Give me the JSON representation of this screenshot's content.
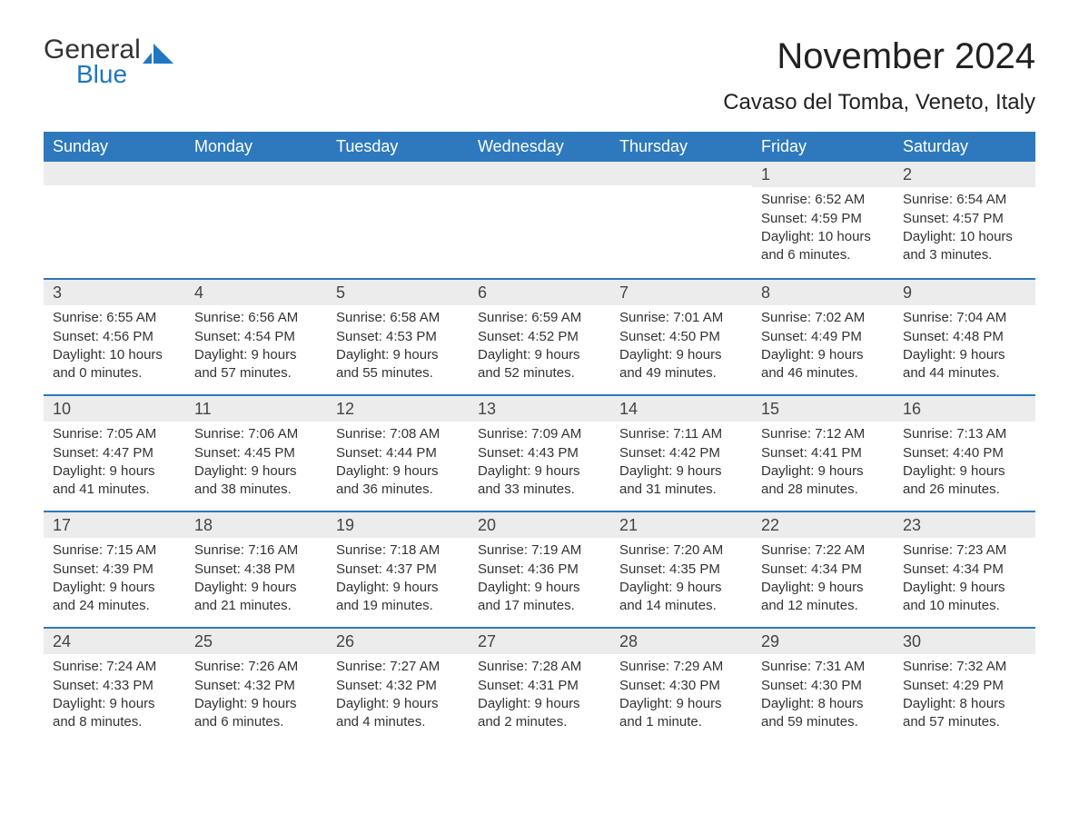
{
  "logo": {
    "word1": "General",
    "word2": "Blue"
  },
  "title": "November 2024",
  "location": "Cavaso del Tomba, Veneto, Italy",
  "colors": {
    "header_bg": "#2e79bd",
    "header_text": "#ffffff",
    "row_border": "#2e79bd",
    "daynum_bg": "#ececec",
    "text": "#333333",
    "logo_blue": "#1f77c3"
  },
  "day_headers": [
    "Sunday",
    "Monday",
    "Tuesday",
    "Wednesday",
    "Thursday",
    "Friday",
    "Saturday"
  ],
  "weeks": [
    [
      null,
      null,
      null,
      null,
      null,
      {
        "n": "1",
        "sunrise": "Sunrise: 6:52 AM",
        "sunset": "Sunset: 4:59 PM",
        "d1": "Daylight: 10 hours",
        "d2": "and 6 minutes."
      },
      {
        "n": "2",
        "sunrise": "Sunrise: 6:54 AM",
        "sunset": "Sunset: 4:57 PM",
        "d1": "Daylight: 10 hours",
        "d2": "and 3 minutes."
      }
    ],
    [
      {
        "n": "3",
        "sunrise": "Sunrise: 6:55 AM",
        "sunset": "Sunset: 4:56 PM",
        "d1": "Daylight: 10 hours",
        "d2": "and 0 minutes."
      },
      {
        "n": "4",
        "sunrise": "Sunrise: 6:56 AM",
        "sunset": "Sunset: 4:54 PM",
        "d1": "Daylight: 9 hours",
        "d2": "and 57 minutes."
      },
      {
        "n": "5",
        "sunrise": "Sunrise: 6:58 AM",
        "sunset": "Sunset: 4:53 PM",
        "d1": "Daylight: 9 hours",
        "d2": "and 55 minutes."
      },
      {
        "n": "6",
        "sunrise": "Sunrise: 6:59 AM",
        "sunset": "Sunset: 4:52 PM",
        "d1": "Daylight: 9 hours",
        "d2": "and 52 minutes."
      },
      {
        "n": "7",
        "sunrise": "Sunrise: 7:01 AM",
        "sunset": "Sunset: 4:50 PM",
        "d1": "Daylight: 9 hours",
        "d2": "and 49 minutes."
      },
      {
        "n": "8",
        "sunrise": "Sunrise: 7:02 AM",
        "sunset": "Sunset: 4:49 PM",
        "d1": "Daylight: 9 hours",
        "d2": "and 46 minutes."
      },
      {
        "n": "9",
        "sunrise": "Sunrise: 7:04 AM",
        "sunset": "Sunset: 4:48 PM",
        "d1": "Daylight: 9 hours",
        "d2": "and 44 minutes."
      }
    ],
    [
      {
        "n": "10",
        "sunrise": "Sunrise: 7:05 AM",
        "sunset": "Sunset: 4:47 PM",
        "d1": "Daylight: 9 hours",
        "d2": "and 41 minutes."
      },
      {
        "n": "11",
        "sunrise": "Sunrise: 7:06 AM",
        "sunset": "Sunset: 4:45 PM",
        "d1": "Daylight: 9 hours",
        "d2": "and 38 minutes."
      },
      {
        "n": "12",
        "sunrise": "Sunrise: 7:08 AM",
        "sunset": "Sunset: 4:44 PM",
        "d1": "Daylight: 9 hours",
        "d2": "and 36 minutes."
      },
      {
        "n": "13",
        "sunrise": "Sunrise: 7:09 AM",
        "sunset": "Sunset: 4:43 PM",
        "d1": "Daylight: 9 hours",
        "d2": "and 33 minutes."
      },
      {
        "n": "14",
        "sunrise": "Sunrise: 7:11 AM",
        "sunset": "Sunset: 4:42 PM",
        "d1": "Daylight: 9 hours",
        "d2": "and 31 minutes."
      },
      {
        "n": "15",
        "sunrise": "Sunrise: 7:12 AM",
        "sunset": "Sunset: 4:41 PM",
        "d1": "Daylight: 9 hours",
        "d2": "and 28 minutes."
      },
      {
        "n": "16",
        "sunrise": "Sunrise: 7:13 AM",
        "sunset": "Sunset: 4:40 PM",
        "d1": "Daylight: 9 hours",
        "d2": "and 26 minutes."
      }
    ],
    [
      {
        "n": "17",
        "sunrise": "Sunrise: 7:15 AM",
        "sunset": "Sunset: 4:39 PM",
        "d1": "Daylight: 9 hours",
        "d2": "and 24 minutes."
      },
      {
        "n": "18",
        "sunrise": "Sunrise: 7:16 AM",
        "sunset": "Sunset: 4:38 PM",
        "d1": "Daylight: 9 hours",
        "d2": "and 21 minutes."
      },
      {
        "n": "19",
        "sunrise": "Sunrise: 7:18 AM",
        "sunset": "Sunset: 4:37 PM",
        "d1": "Daylight: 9 hours",
        "d2": "and 19 minutes."
      },
      {
        "n": "20",
        "sunrise": "Sunrise: 7:19 AM",
        "sunset": "Sunset: 4:36 PM",
        "d1": "Daylight: 9 hours",
        "d2": "and 17 minutes."
      },
      {
        "n": "21",
        "sunrise": "Sunrise: 7:20 AM",
        "sunset": "Sunset: 4:35 PM",
        "d1": "Daylight: 9 hours",
        "d2": "and 14 minutes."
      },
      {
        "n": "22",
        "sunrise": "Sunrise: 7:22 AM",
        "sunset": "Sunset: 4:34 PM",
        "d1": "Daylight: 9 hours",
        "d2": "and 12 minutes."
      },
      {
        "n": "23",
        "sunrise": "Sunrise: 7:23 AM",
        "sunset": "Sunset: 4:34 PM",
        "d1": "Daylight: 9 hours",
        "d2": "and 10 minutes."
      }
    ],
    [
      {
        "n": "24",
        "sunrise": "Sunrise: 7:24 AM",
        "sunset": "Sunset: 4:33 PM",
        "d1": "Daylight: 9 hours",
        "d2": "and 8 minutes."
      },
      {
        "n": "25",
        "sunrise": "Sunrise: 7:26 AM",
        "sunset": "Sunset: 4:32 PM",
        "d1": "Daylight: 9 hours",
        "d2": "and 6 minutes."
      },
      {
        "n": "26",
        "sunrise": "Sunrise: 7:27 AM",
        "sunset": "Sunset: 4:32 PM",
        "d1": "Daylight: 9 hours",
        "d2": "and 4 minutes."
      },
      {
        "n": "27",
        "sunrise": "Sunrise: 7:28 AM",
        "sunset": "Sunset: 4:31 PM",
        "d1": "Daylight: 9 hours",
        "d2": "and 2 minutes."
      },
      {
        "n": "28",
        "sunrise": "Sunrise: 7:29 AM",
        "sunset": "Sunset: 4:30 PM",
        "d1": "Daylight: 9 hours",
        "d2": "and 1 minute."
      },
      {
        "n": "29",
        "sunrise": "Sunrise: 7:31 AM",
        "sunset": "Sunset: 4:30 PM",
        "d1": "Daylight: 8 hours",
        "d2": "and 59 minutes."
      },
      {
        "n": "30",
        "sunrise": "Sunrise: 7:32 AM",
        "sunset": "Sunset: 4:29 PM",
        "d1": "Daylight: 8 hours",
        "d2": "and 57 minutes."
      }
    ]
  ]
}
